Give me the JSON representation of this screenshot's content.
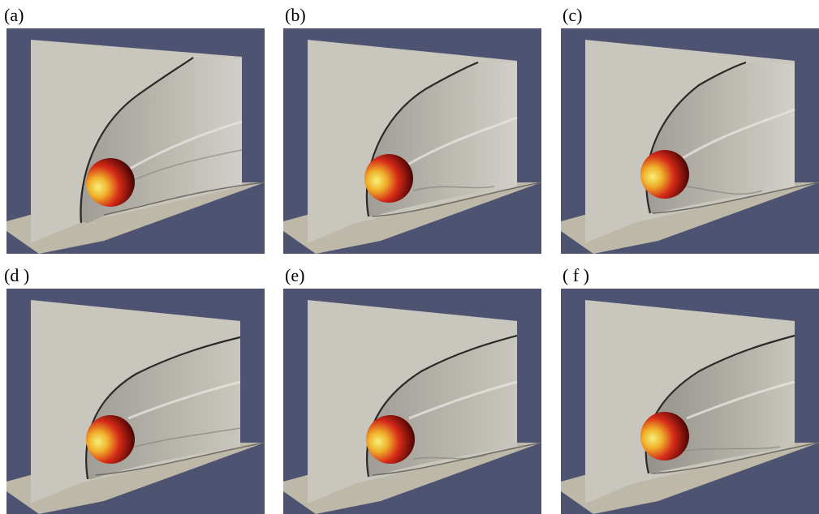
{
  "figure": {
    "panels": [
      {
        "label": "(a)"
      },
      {
        "label": "(b)"
      },
      {
        "label": "(c)"
      },
      {
        "label": "(d )"
      },
      {
        "label": "(e)"
      },
      {
        "label": "( f )"
      }
    ]
  },
  "colors": {
    "background": "#4e5372",
    "plane": "#c8c6bd",
    "floor": "#bcb7a8",
    "shock_line": "#2a2a2a",
    "sphere_hot": "#f2e85a",
    "sphere_mid": "#d7271a",
    "sphere_dark": "#3a0707"
  }
}
